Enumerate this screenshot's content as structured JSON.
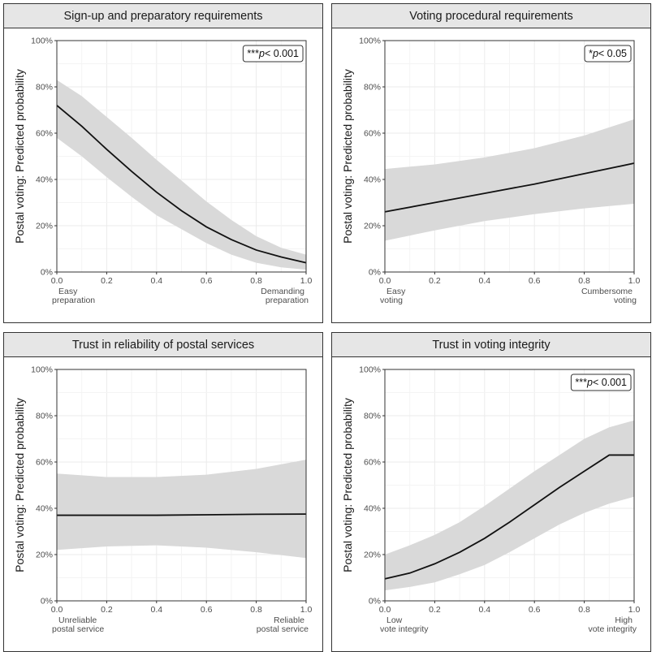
{
  "colors": {
    "ribbon": "#d9d9d9",
    "line": "#111111",
    "strip_fill": "#e6e6e6",
    "grid_major": "#ebebeb",
    "grid_minor": "#f4f4f4",
    "axis": "#333333"
  },
  "chart_data": [
    {
      "type": "line",
      "title": "Sign-up and preparatory requirements",
      "ylabel": "Postal voting: Predicted probability",
      "xlim": [
        0,
        1
      ],
      "ylim": [
        0,
        100
      ],
      "x_ticks": [
        "0.0",
        "0.2",
        "0.4",
        "0.6",
        "0.8",
        "1.0"
      ],
      "y_ticks": [
        "0%",
        "20%",
        "40%",
        "60%",
        "80%",
        "100%"
      ],
      "x_caption_left": [
        "Easy",
        "preparation"
      ],
      "x_caption_right": [
        "Demanding",
        "preparation"
      ],
      "pvalue": {
        "stars": "***",
        "p": "p",
        "rest": "< 0.001"
      },
      "x": [
        0,
        0.1,
        0.2,
        0.3,
        0.4,
        0.5,
        0.6,
        0.7,
        0.8,
        0.9,
        1.0
      ],
      "y": [
        72,
        63,
        53,
        43.5,
        34.5,
        26.5,
        19.5,
        14,
        9.5,
        6.5,
        4
      ],
      "lower": [
        58,
        50,
        41,
        32.5,
        24.5,
        18.5,
        12.5,
        7.5,
        4,
        2,
        1
      ],
      "upper": [
        83,
        76,
        67,
        58,
        48.5,
        39.5,
        30.5,
        22.5,
        15.5,
        10.5,
        7.5
      ]
    },
    {
      "type": "line",
      "title": "Voting procedural requirements",
      "ylabel": "Postal voting: Predicted probability",
      "xlim": [
        0,
        1
      ],
      "ylim": [
        0,
        100
      ],
      "x_ticks": [
        "0.0",
        "0.2",
        "0.4",
        "0.6",
        "0.8",
        "1.0"
      ],
      "y_ticks": [
        "0%",
        "20%",
        "40%",
        "60%",
        "80%",
        "100%"
      ],
      "x_caption_left": [
        "Easy",
        "voting"
      ],
      "x_caption_right": [
        "Cumbersome",
        "voting"
      ],
      "pvalue": {
        "stars": "*",
        "p": "p",
        "rest": "< 0.05"
      },
      "x": [
        0,
        0.2,
        0.4,
        0.6,
        0.8,
        1.0
      ],
      "y": [
        26,
        30,
        34,
        38,
        42.5,
        47
      ],
      "lower": [
        13.5,
        18,
        22,
        25,
        27.5,
        29.5
      ],
      "upper": [
        44.5,
        46.5,
        49.5,
        53.5,
        59,
        66
      ]
    },
    {
      "type": "line",
      "title": "Trust in reliability of postal services",
      "ylabel": "Postal voting: Predicted probability",
      "xlim": [
        0,
        1
      ],
      "ylim": [
        0,
        100
      ],
      "x_ticks": [
        "0.0",
        "0.2",
        "0.4",
        "0.6",
        "0.8",
        "1.0"
      ],
      "y_ticks": [
        "0%",
        "20%",
        "40%",
        "60%",
        "80%",
        "100%"
      ],
      "x_caption_left": [
        "Unreliable",
        "postal service"
      ],
      "x_caption_right": [
        "Reliable",
        "postal service"
      ],
      "x": [
        0,
        0.2,
        0.4,
        0.6,
        0.8,
        1.0
      ],
      "y": [
        37,
        37,
        37,
        37.2,
        37.4,
        37.5
      ],
      "lower": [
        22,
        23.5,
        24,
        23,
        21,
        18.5
      ],
      "upper": [
        55,
        53.5,
        53.5,
        54.5,
        57,
        61
      ]
    },
    {
      "type": "line",
      "title": "Trust in voting integrity",
      "ylabel": "Postal voting: Predicted probability",
      "xlim": [
        0,
        1
      ],
      "ylim": [
        0,
        100
      ],
      "x_ticks": [
        "0.0",
        "0.2",
        "0.4",
        "0.6",
        "0.8",
        "1.0"
      ],
      "y_ticks": [
        "0%",
        "20%",
        "40%",
        "60%",
        "80%",
        "100%"
      ],
      "x_caption_left": [
        "Low",
        "vote integrity"
      ],
      "x_caption_right": [
        "High",
        "vote integrity"
      ],
      "pvalue": {
        "stars": "***",
        "p": "p",
        "rest": "< 0.001"
      },
      "x": [
        0,
        0.1,
        0.2,
        0.3,
        0.4,
        0.5,
        0.6,
        0.7,
        0.8,
        0.9,
        1.0
      ],
      "y": [
        9.5,
        12,
        16,
        21,
        27,
        34,
        41.5,
        49,
        56,
        63,
        63
      ],
      "lower": [
        4.5,
        6,
        8,
        11.5,
        15.5,
        21,
        27,
        33,
        38,
        42,
        45
      ],
      "upper": [
        20,
        24,
        28.5,
        34,
        41,
        48.5,
        56,
        63,
        70,
        75,
        78
      ]
    }
  ]
}
